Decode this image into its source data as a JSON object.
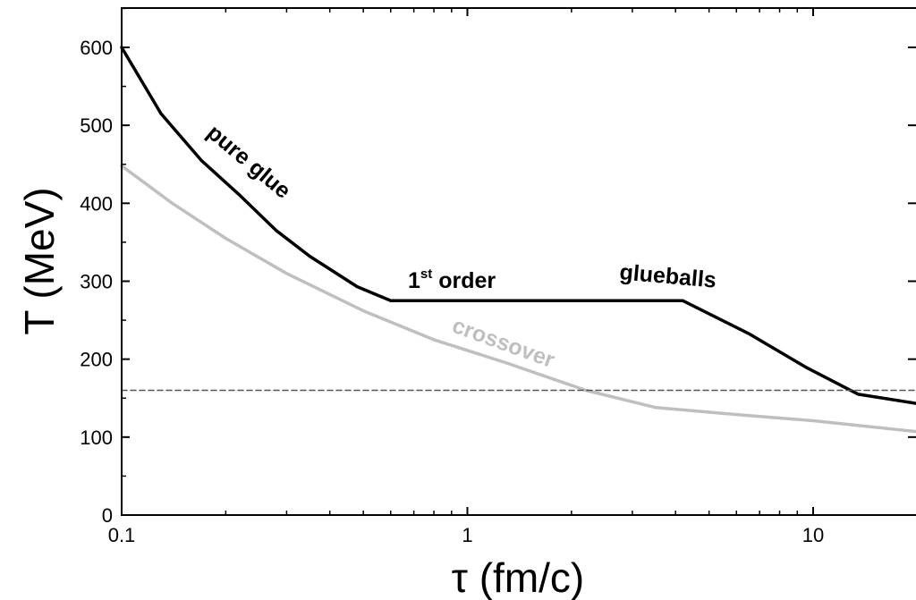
{
  "chart_data": {
    "type": "line",
    "title": "",
    "xlabel": "τ (fm/c)",
    "ylabel": "T (MeV)",
    "x_scale": "log",
    "xlim": [
      0.1,
      20
    ],
    "ylim": [
      0,
      650
    ],
    "x_ticks": [
      0.1,
      1,
      10
    ],
    "x_tick_labels": [
      "0.1",
      "1",
      "10"
    ],
    "y_ticks": [
      0,
      100,
      200,
      300,
      400,
      500,
      600
    ],
    "y_tick_labels": [
      "0",
      "100",
      "200",
      "300",
      "400",
      "500",
      "600"
    ],
    "grid": false,
    "legend": "none",
    "series": [
      {
        "color": "#000000",
        "style": "solid",
        "points": [
          [
            0.1,
            600
          ],
          [
            0.13,
            515
          ],
          [
            0.17,
            455
          ],
          [
            0.22,
            410
          ],
          [
            0.28,
            365
          ],
          [
            0.35,
            332
          ],
          [
            0.48,
            293
          ],
          [
            0.6,
            275
          ],
          [
            4.2,
            275
          ],
          [
            6.5,
            233
          ],
          [
            9.5,
            190
          ],
          [
            13.5,
            155
          ],
          [
            20,
            143
          ]
        ]
      },
      {
        "color": "#bfbfbf",
        "style": "solid",
        "points": [
          [
            0.1,
            448
          ],
          [
            0.14,
            400
          ],
          [
            0.2,
            355
          ],
          [
            0.3,
            310
          ],
          [
            0.5,
            262
          ],
          [
            0.8,
            225
          ],
          [
            1.3,
            195
          ],
          [
            2.2,
            160
          ],
          [
            3.5,
            138
          ],
          [
            6,
            129
          ],
          [
            10,
            121
          ],
          [
            20,
            107
          ]
        ]
      },
      {
        "color": "#555555",
        "style": "dashed",
        "points": [
          [
            0.1,
            160
          ],
          [
            20,
            160
          ]
        ]
      }
    ],
    "annotations": [
      {
        "text": "pure glue",
        "color": "#000000"
      },
      {
        "text": "1",
        "sup": "st",
        "rest": " order",
        "color": "#000000"
      },
      {
        "text": "glueballs",
        "color": "#000000"
      },
      {
        "text": "crossover",
        "color": "#bfbfbf"
      }
    ]
  }
}
